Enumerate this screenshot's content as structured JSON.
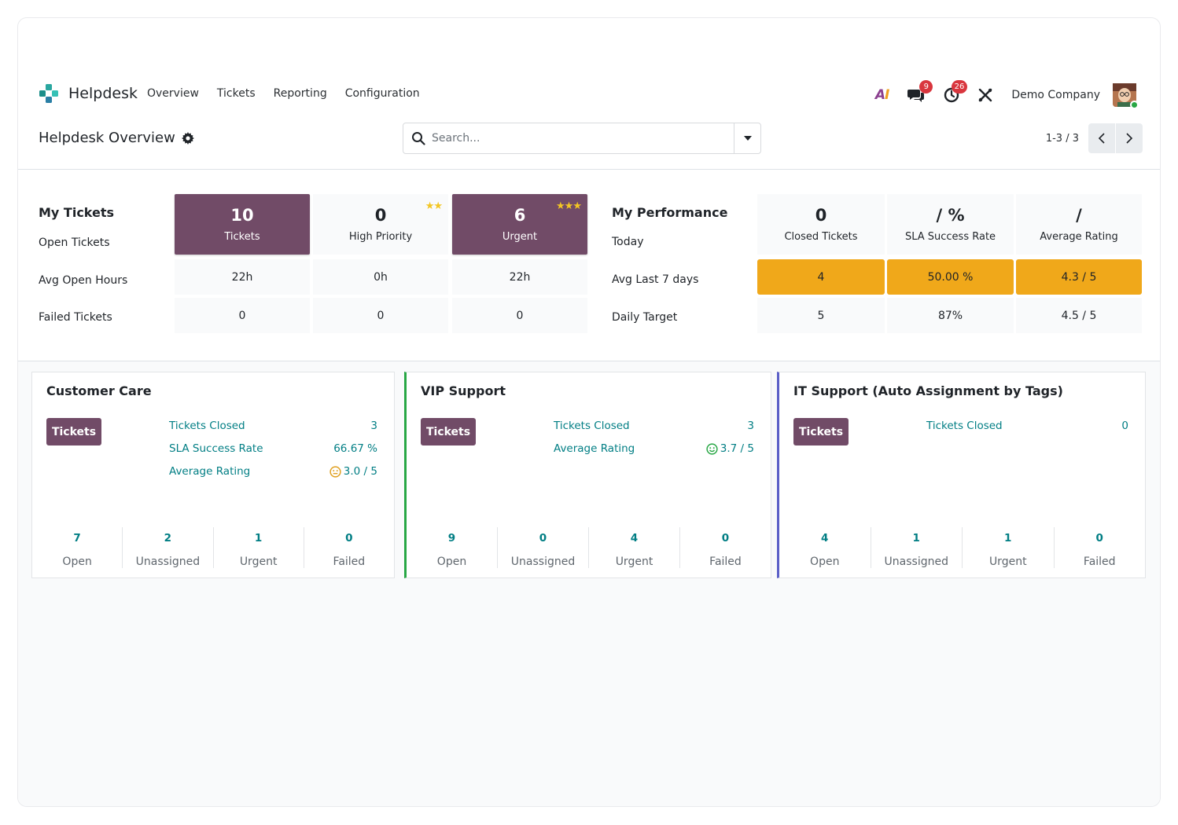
{
  "navbar": {
    "app_name": "Helpdesk",
    "menu": [
      "Overview",
      "Tickets",
      "Reporting",
      "Configuration"
    ],
    "ai_label_a": "A",
    "ai_label_i": "I",
    "messages_badge": "9",
    "activities_badge": "26",
    "company": "Demo Company"
  },
  "control": {
    "title": "Helpdesk Overview",
    "search_placeholder": "Search...",
    "pager": "1-3 / 3"
  },
  "my_tickets": {
    "heading": "My Tickets",
    "row_labels": [
      "Open Tickets",
      "Avg Open Hours",
      "Failed Tickets"
    ],
    "columns": [
      {
        "count": "10",
        "label": "Tickets",
        "avg_hours": "22h",
        "failed": "0"
      },
      {
        "count": "0",
        "label": "High Priority",
        "stars": "★★",
        "avg_hours": "0h",
        "failed": "0"
      },
      {
        "count": "6",
        "label": "Urgent",
        "stars": "★★★",
        "avg_hours": "22h",
        "failed": "0"
      }
    ]
  },
  "my_performance": {
    "heading": "My Performance",
    "row_labels": [
      "Today",
      "Avg Last 7 days",
      "Daily Target"
    ],
    "columns": [
      {
        "today": "0",
        "label": "Closed Tickets",
        "avg7": "4",
        "target": "5"
      },
      {
        "today": "/ %",
        "label": "SLA Success Rate",
        "avg7": "50.00 %",
        "target": "87%"
      },
      {
        "today": "/",
        "label": "Average Rating",
        "avg7": "4.3 / 5",
        "target": "4.5 / 5"
      }
    ]
  },
  "teams": [
    {
      "name": "Customer Care",
      "accent": "#e2e4e7",
      "button": "Tickets",
      "kpis": [
        {
          "label": "Tickets Closed",
          "value": "3"
        },
        {
          "label": "SLA Success Rate",
          "value": "66.67 %"
        },
        {
          "label": "Average Rating",
          "value": "3.0 / 5",
          "smiley": "neutral"
        }
      ],
      "stats": [
        {
          "value": "7",
          "label": "Open"
        },
        {
          "value": "2",
          "label": "Unassigned"
        },
        {
          "value": "1",
          "label": "Urgent"
        },
        {
          "value": "0",
          "label": "Failed"
        }
      ]
    },
    {
      "name": "VIP Support",
      "accent": "#28a745",
      "button": "Tickets",
      "kpis": [
        {
          "label": "Tickets Closed",
          "value": "3"
        },
        {
          "label": "Average Rating",
          "value": "3.7 / 5",
          "smiley": "happy"
        }
      ],
      "stats": [
        {
          "value": "9",
          "label": "Open"
        },
        {
          "value": "0",
          "label": "Unassigned"
        },
        {
          "value": "4",
          "label": "Urgent"
        },
        {
          "value": "0",
          "label": "Failed"
        }
      ]
    },
    {
      "name": "IT Support (Auto Assignment by Tags)",
      "accent": "#5b5fc7",
      "button": "Tickets",
      "kpis": [
        {
          "label": "Tickets Closed",
          "value": "0"
        }
      ],
      "stats": [
        {
          "value": "4",
          "label": "Open"
        },
        {
          "value": "1",
          "label": "Unassigned"
        },
        {
          "value": "1",
          "label": "Urgent"
        },
        {
          "value": "0",
          "label": "Failed"
        }
      ]
    }
  ],
  "colors": {
    "primary": "#714b67",
    "kpi_orange": "#f0a81a",
    "link_teal": "#017e84",
    "badge_red": "#d9363e"
  }
}
